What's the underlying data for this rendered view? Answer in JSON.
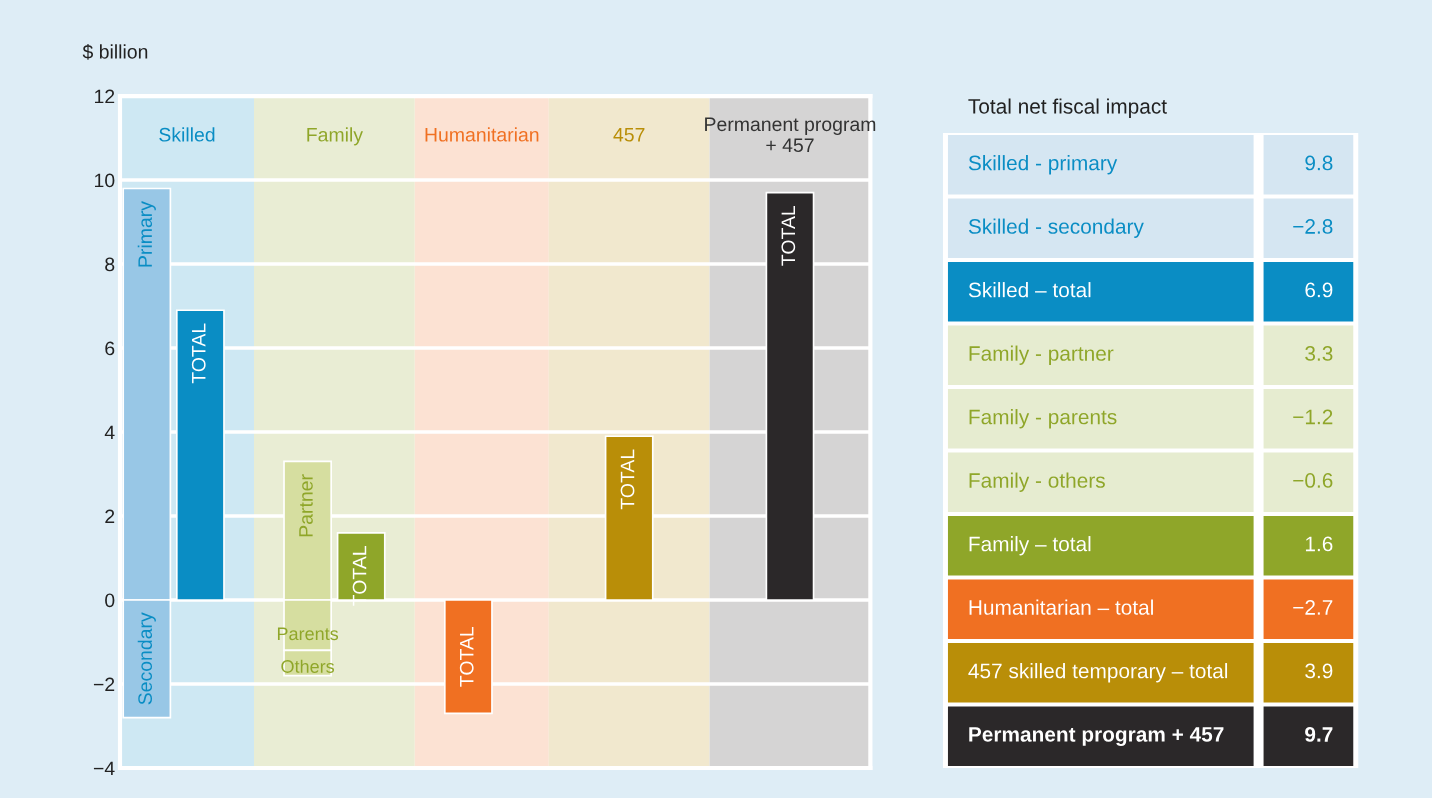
{
  "chart_data": [
    {
      "type": "bar",
      "ylabel": "$ billion",
      "stacked": true,
      "categories": [
        null,
        null,
        null,
        null,
        null,
        null,
        null,
        null,
        null,
        null,
        null,
        null,
        null,
        null
      ],
      "series": [
        {
          "values": [
            9.8,
            null,
            null,
            3.3,
            null,
            null,
            null,
            null,
            null,
            null,
            null,
            null,
            null,
            null
          ],
          "colors": [
            "#98c7e6",
            null,
            null,
            "#d6dea0",
            null,
            null,
            null,
            null,
            null,
            null,
            null,
            null,
            null,
            null
          ],
          "value_labels": [
            "Primary",
            null,
            null,
            "Partner",
            null,
            null,
            null,
            null,
            null,
            null,
            null,
            null,
            null,
            null
          ]
        },
        {
          "values": [
            -2.8,
            null,
            null,
            -1.2,
            null,
            null,
            null,
            null,
            null,
            null,
            null,
            null,
            null,
            null
          ],
          "colors": [
            "#98c7e6",
            null,
            null,
            "#d6dea0",
            null,
            null,
            null,
            null,
            null,
            null,
            null,
            null,
            null,
            null
          ],
          "value_labels": [
            "Secondary",
            null,
            null,
            "Parents",
            null,
            null,
            null,
            null,
            null,
            null,
            null,
            null,
            null,
            null
          ]
        },
        {
          "values": [
            null,
            null,
            null,
            -0.6,
            null,
            null,
            null,
            null,
            null,
            null,
            null,
            null,
            null,
            null
          ],
          "colors": [
            null,
            null,
            null,
            "#d6dea0",
            null,
            null,
            null,
            null,
            null,
            null,
            null,
            null,
            null,
            null
          ],
          "value_labels": [
            null,
            null,
            null,
            "Others",
            null,
            null,
            null,
            null,
            null,
            null,
            null,
            null,
            null,
            null
          ]
        },
        {
          "values": [
            null,
            6.9,
            null,
            null,
            1.6,
            null,
            -2.7,
            null,
            null,
            3.9,
            null,
            null,
            9.7,
            null
          ],
          "colors": [
            null,
            "#0a8dc4",
            null,
            null,
            "#8fa629",
            null,
            "#f07022",
            null,
            null,
            "#b98e08",
            null,
            null,
            "#2b2829",
            null
          ],
          "value_labels": [
            null,
            "TOTAL",
            null,
            null,
            "TOTAL",
            null,
            "TOTAL",
            null,
            null,
            "TOTAL",
            null,
            null,
            "TOTAL",
            null
          ]
        }
      ],
      "annotations": [
        "Skilled",
        "Family",
        "Humanitarian",
        "457",
        "Permanent program\n+ 457"
      ],
      "ylim": [
        -4,
        12
      ],
      "yticks": [
        {
          "value": -4,
          "label": "−4"
        },
        {
          "value": -2,
          "label": "−2"
        },
        0,
        2,
        4,
        6,
        8,
        10,
        12
      ],
      "grid": "y"
    },
    {
      "type": "other",
      "title": "Total net fiscal impact",
      "data_labels": true,
      "categories": [
        "Skilled - primary",
        "Skilled - secondary",
        "Skilled – total",
        "Family - partner",
        "Family - parents",
        "Family - others",
        "Family – total",
        "Humanitarian – total",
        "457 skilled temporary – total",
        "Permanent program + 457"
      ],
      "values": [
        9.8,
        -2.8,
        6.9,
        3.3,
        -1.2,
        -0.6,
        1.6,
        -2.7,
        3.9,
        9.7
      ],
      "colors": [
        "#d5e6f2",
        "#d5e6f2",
        "#0a8dc4",
        "#e6ecd0",
        "#e6ecd0",
        "#e6ecd0",
        "#8fa629",
        "#f07022",
        "#b98e08",
        "#2b2829"
      ]
    }
  ]
}
